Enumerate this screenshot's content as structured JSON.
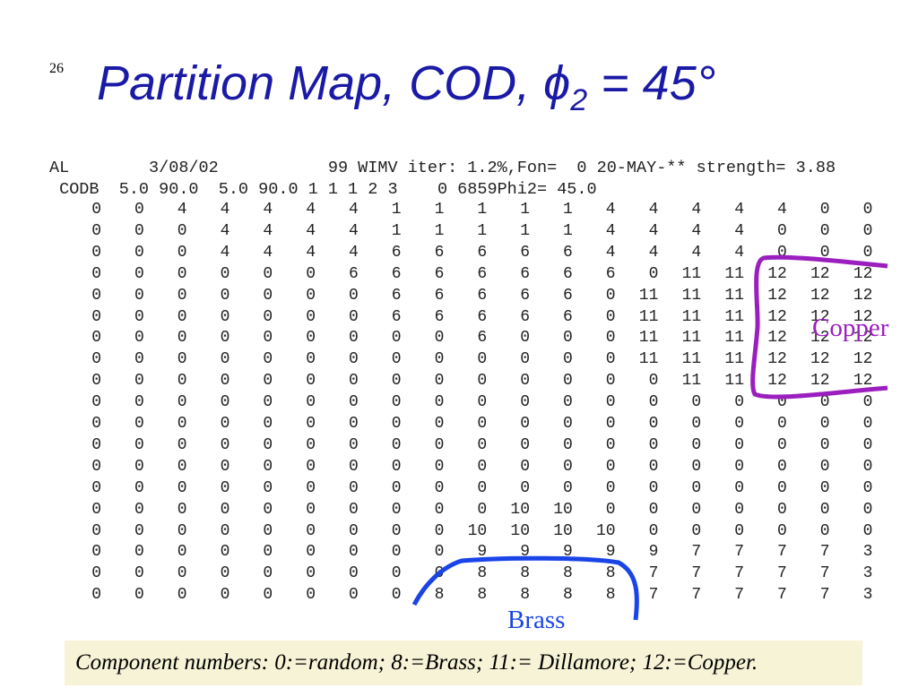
{
  "slide_number": "26",
  "title": {
    "text": "Partition Map, COD, ",
    "symbol": "ϕ",
    "subscript": "2",
    "rest": " = 45°"
  },
  "header_lines": [
    "AL        3/08/02           99 WIMV iter: 1.2%,Fon=  0 20-MAY-** strength= 3.88",
    " CODB  5.0 90.0  5.0 90.0 1 1 1 2 3    0 6859Phi2= 45.0"
  ],
  "table": {
    "rows": [
      [
        0,
        0,
        4,
        4,
        4,
        4,
        4,
        1,
        1,
        1,
        1,
        1,
        4,
        4,
        4,
        4,
        4,
        0,
        0
      ],
      [
        0,
        0,
        0,
        4,
        4,
        4,
        4,
        1,
        1,
        1,
        1,
        1,
        4,
        4,
        4,
        4,
        0,
        0,
        0
      ],
      [
        0,
        0,
        0,
        4,
        4,
        4,
        4,
        6,
        6,
        6,
        6,
        6,
        4,
        4,
        4,
        4,
        0,
        0,
        0
      ],
      [
        0,
        0,
        0,
        0,
        0,
        0,
        6,
        6,
        6,
        6,
        6,
        6,
        6,
        0,
        11,
        11,
        12,
        12,
        12
      ],
      [
        0,
        0,
        0,
        0,
        0,
        0,
        0,
        6,
        6,
        6,
        6,
        6,
        0,
        11,
        11,
        11,
        12,
        12,
        12
      ],
      [
        0,
        0,
        0,
        0,
        0,
        0,
        0,
        6,
        6,
        6,
        6,
        6,
        0,
        11,
        11,
        11,
        12,
        12,
        12
      ],
      [
        0,
        0,
        0,
        0,
        0,
        0,
        0,
        0,
        0,
        6,
        0,
        0,
        0,
        11,
        11,
        11,
        12,
        12,
        12
      ],
      [
        0,
        0,
        0,
        0,
        0,
        0,
        0,
        0,
        0,
        0,
        0,
        0,
        0,
        11,
        11,
        11,
        12,
        12,
        12
      ],
      [
        0,
        0,
        0,
        0,
        0,
        0,
        0,
        0,
        0,
        0,
        0,
        0,
        0,
        0,
        11,
        11,
        12,
        12,
        12
      ],
      [
        0,
        0,
        0,
        0,
        0,
        0,
        0,
        0,
        0,
        0,
        0,
        0,
        0,
        0,
        0,
        0,
        0,
        0,
        0
      ],
      [
        0,
        0,
        0,
        0,
        0,
        0,
        0,
        0,
        0,
        0,
        0,
        0,
        0,
        0,
        0,
        0,
        0,
        0,
        0
      ],
      [
        0,
        0,
        0,
        0,
        0,
        0,
        0,
        0,
        0,
        0,
        0,
        0,
        0,
        0,
        0,
        0,
        0,
        0,
        0
      ],
      [
        0,
        0,
        0,
        0,
        0,
        0,
        0,
        0,
        0,
        0,
        0,
        0,
        0,
        0,
        0,
        0,
        0,
        0,
        0
      ],
      [
        0,
        0,
        0,
        0,
        0,
        0,
        0,
        0,
        0,
        0,
        0,
        0,
        0,
        0,
        0,
        0,
        0,
        0,
        0
      ],
      [
        0,
        0,
        0,
        0,
        0,
        0,
        0,
        0,
        0,
        0,
        10,
        10,
        0,
        0,
        0,
        0,
        0,
        0,
        0
      ],
      [
        0,
        0,
        0,
        0,
        0,
        0,
        0,
        0,
        0,
        10,
        10,
        10,
        10,
        0,
        0,
        0,
        0,
        0,
        0
      ],
      [
        0,
        0,
        0,
        0,
        0,
        0,
        0,
        0,
        0,
        9,
        9,
        9,
        9,
        9,
        7,
        7,
        7,
        7,
        3
      ],
      [
        0,
        0,
        0,
        0,
        0,
        0,
        0,
        0,
        0,
        8,
        8,
        8,
        8,
        7,
        7,
        7,
        7,
        7,
        3
      ],
      [
        0,
        0,
        0,
        0,
        0,
        0,
        0,
        0,
        8,
        8,
        8,
        8,
        8,
        7,
        7,
        7,
        7,
        7,
        3
      ]
    ]
  },
  "annotations": {
    "copper": "Copper",
    "brass": "Brass"
  },
  "caption": "Component numbers: 0:=random; 8:=Brass; 11:= Dillamore; 12:=Copper."
}
